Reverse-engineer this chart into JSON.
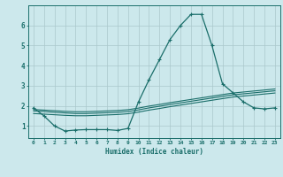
{
  "xlabel": "Humidex (Indice chaleur)",
  "bg_color": "#cce8ec",
  "grid_color": "#aac8cc",
  "line_color": "#1a6e6a",
  "xlim": [
    -0.5,
    23.5
  ],
  "ylim": [
    0.4,
    7.0
  ],
  "xticks": [
    0,
    1,
    2,
    3,
    4,
    5,
    6,
    7,
    8,
    9,
    10,
    11,
    12,
    13,
    14,
    15,
    16,
    17,
    18,
    19,
    20,
    21,
    22,
    23
  ],
  "yticks": [
    1,
    2,
    3,
    4,
    5,
    6
  ],
  "main_x": [
    0,
    1,
    2,
    3,
    4,
    5,
    6,
    7,
    8,
    9,
    10,
    11,
    12,
    13,
    14,
    15,
    16,
    17,
    18,
    19,
    20,
    21,
    22,
    23
  ],
  "main_y": [
    1.9,
    1.5,
    1.0,
    0.75,
    0.8,
    0.82,
    0.82,
    0.82,
    0.78,
    0.88,
    2.2,
    3.3,
    4.3,
    5.3,
    6.0,
    6.55,
    6.55,
    5.0,
    3.1,
    2.65,
    2.2,
    1.9,
    1.85,
    1.9
  ],
  "line2_x": [
    0,
    1,
    2,
    3,
    4,
    5,
    6,
    7,
    8,
    9,
    10,
    11,
    12,
    13,
    14,
    15,
    16,
    17,
    18,
    19,
    20,
    21,
    22,
    23
  ],
  "line2_y": [
    1.75,
    1.72,
    1.68,
    1.65,
    1.62,
    1.62,
    1.64,
    1.66,
    1.68,
    1.72,
    1.8,
    1.9,
    1.98,
    2.07,
    2.15,
    2.23,
    2.31,
    2.39,
    2.47,
    2.55,
    2.6,
    2.65,
    2.7,
    2.75
  ],
  "line3_x": [
    0,
    1,
    2,
    3,
    4,
    5,
    6,
    7,
    8,
    9,
    10,
    11,
    12,
    13,
    14,
    15,
    16,
    17,
    18,
    19,
    20,
    21,
    22,
    23
  ],
  "line3_y": [
    1.82,
    1.79,
    1.76,
    1.73,
    1.71,
    1.71,
    1.73,
    1.75,
    1.77,
    1.81,
    1.89,
    1.99,
    2.07,
    2.16,
    2.24,
    2.32,
    2.4,
    2.48,
    2.56,
    2.64,
    2.69,
    2.74,
    2.79,
    2.84
  ],
  "line4_x": [
    0,
    1,
    2,
    3,
    4,
    5,
    6,
    7,
    8,
    9,
    10,
    11,
    12,
    13,
    14,
    15,
    16,
    17,
    18,
    19,
    20,
    21,
    22,
    23
  ],
  "line4_y": [
    1.62,
    1.59,
    1.56,
    1.53,
    1.51,
    1.51,
    1.53,
    1.55,
    1.57,
    1.61,
    1.69,
    1.79,
    1.87,
    1.96,
    2.04,
    2.12,
    2.2,
    2.28,
    2.36,
    2.44,
    2.49,
    2.54,
    2.59,
    2.64
  ]
}
